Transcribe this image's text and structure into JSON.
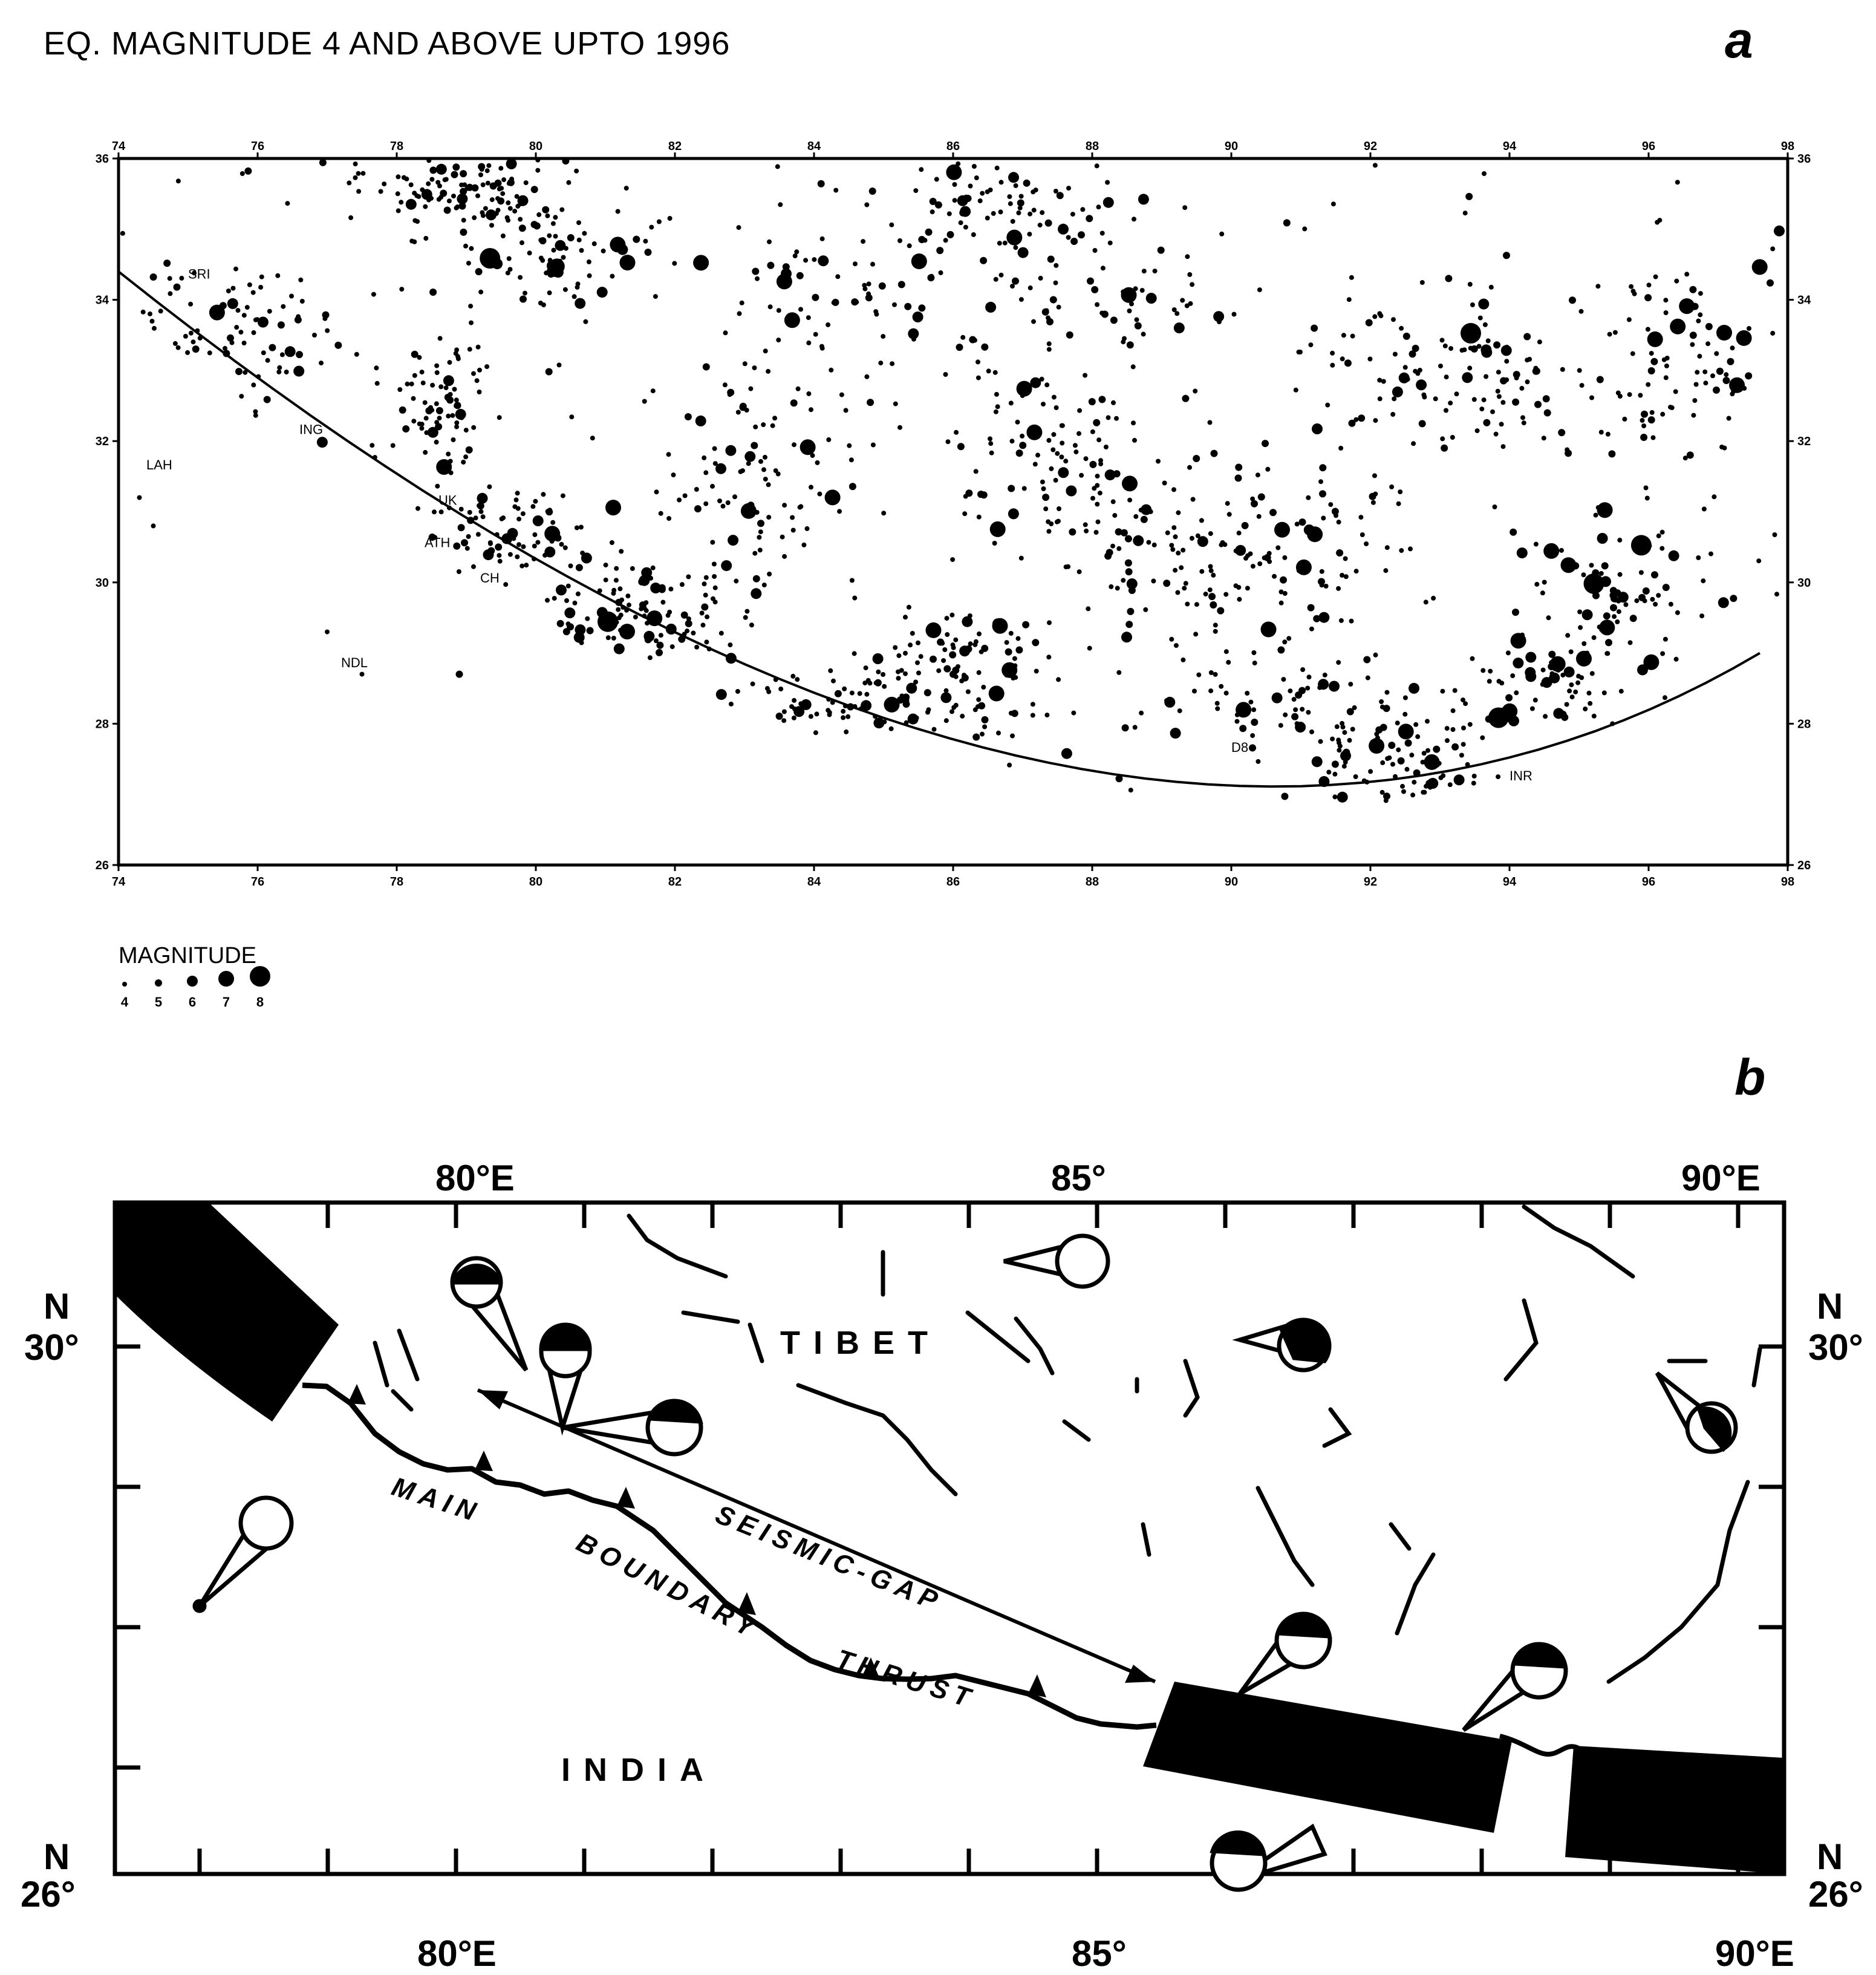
{
  "panel_a": {
    "title": "EQ. MAGNITUDE 4 AND ABOVE UPTO  1996",
    "label": "a",
    "lon_ticks": [
      "74",
      "76",
      "78",
      "80",
      "82",
      "84",
      "86",
      "88",
      "90",
      "92",
      "94",
      "96",
      "98"
    ],
    "lat_ticks": [
      "36",
      "34",
      "32",
      "30",
      "28",
      "26"
    ],
    "place_labels": [
      {
        "text": "SRI",
        "lon": 75.0,
        "lat": 34.3
      },
      {
        "text": "LAH",
        "lon": 74.4,
        "lat": 31.6
      },
      {
        "text": "ING",
        "lon": 76.6,
        "lat": 32.1
      },
      {
        "text": "UK",
        "lon": 78.6,
        "lat": 31.1
      },
      {
        "text": "ATH",
        "lon": 78.4,
        "lat": 30.5
      },
      {
        "text": "CH",
        "lon": 79.2,
        "lat": 30.0
      },
      {
        "text": "NDL",
        "lon": 77.2,
        "lat": 28.8
      },
      {
        "text": "D8",
        "lon": 90.0,
        "lat": 27.6
      },
      {
        "text": "INR",
        "lon": 94.0,
        "lat": 27.2
      }
    ],
    "legend": {
      "title": "MAGNITUDE",
      "items": [
        "4",
        "5",
        "6",
        "7",
        "8"
      ]
    }
  },
  "panel_b": {
    "label": "b",
    "top_lon_labels": [
      "80°E",
      "85°",
      "90°E"
    ],
    "bottom_lon_labels": [
      "80°E",
      "85°",
      "90°E"
    ],
    "lat_labels": [
      {
        "hemi": "N",
        "value": "30°"
      },
      {
        "hemi": "N",
        "value": "26°"
      }
    ],
    "region_labels": [
      "TIBET",
      "INDIA"
    ],
    "fault_labels": [
      "MAIN",
      "BOUNDARY",
      "THRUST",
      "SEISMIC-GAP"
    ]
  }
}
